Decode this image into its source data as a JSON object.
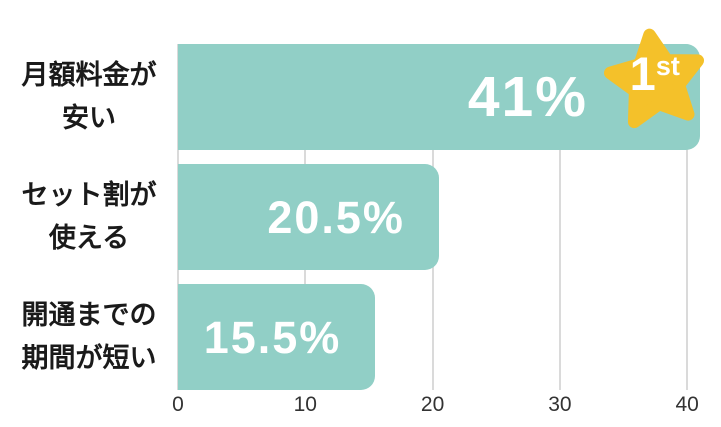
{
  "chart_data": {
    "type": "bar",
    "orientation": "horizontal",
    "title": "",
    "categories": [
      "月額料金が\n安い",
      "セット割が\n使える",
      "開通までの\n期間が短い"
    ],
    "values": [
      41,
      20.5,
      15.5
    ],
    "value_labels": [
      "41%",
      "20.5%",
      "15.5%"
    ],
    "x_ticks": [
      0,
      10,
      20,
      30,
      40
    ],
    "xlim": [
      0,
      42.7
    ],
    "grid": true,
    "legend": false,
    "bar_color": "#91cfc6",
    "value_label_color": "#ffffff",
    "gridline_color": "#dadada",
    "tick_label_color": "#333333",
    "category_label_color": "#1a1a1a",
    "badge": {
      "rank_number": "1",
      "rank_suffix": "st",
      "star_color": "#f4c12a",
      "text_color": "#ffffff",
      "attached_to_category": "月額料金が安い"
    }
  }
}
